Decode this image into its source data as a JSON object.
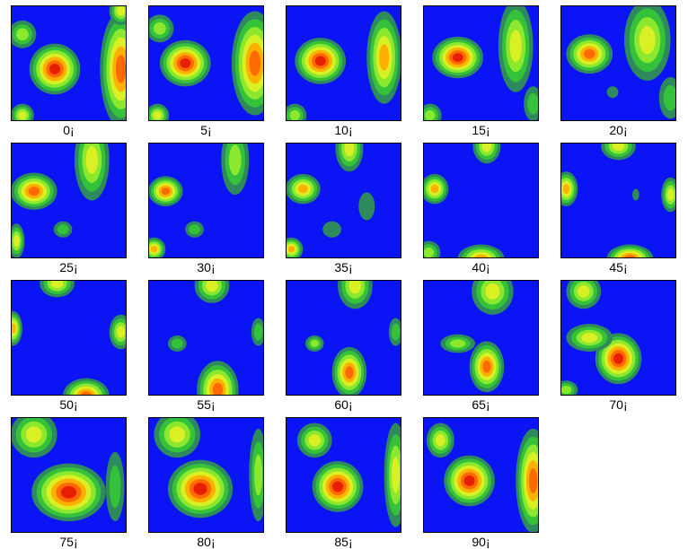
{
  "panels": [
    {
      "label": "0¡"
    },
    {
      "label": "5¡"
    },
    {
      "label": "10¡"
    },
    {
      "label": "15¡"
    },
    {
      "label": "20¡"
    },
    {
      "label": "25¡"
    },
    {
      "label": "30¡"
    },
    {
      "label": "35¡"
    },
    {
      "label": "40¡"
    },
    {
      "label": "45¡"
    },
    {
      "label": "50¡"
    },
    {
      "label": "55¡"
    },
    {
      "label": "60¡"
    },
    {
      "label": "65¡"
    },
    {
      "label": "70¡"
    },
    {
      "label": "75¡"
    },
    {
      "label": "80¡"
    },
    {
      "label": "85¡"
    },
    {
      "label": "90¡"
    }
  ]
}
